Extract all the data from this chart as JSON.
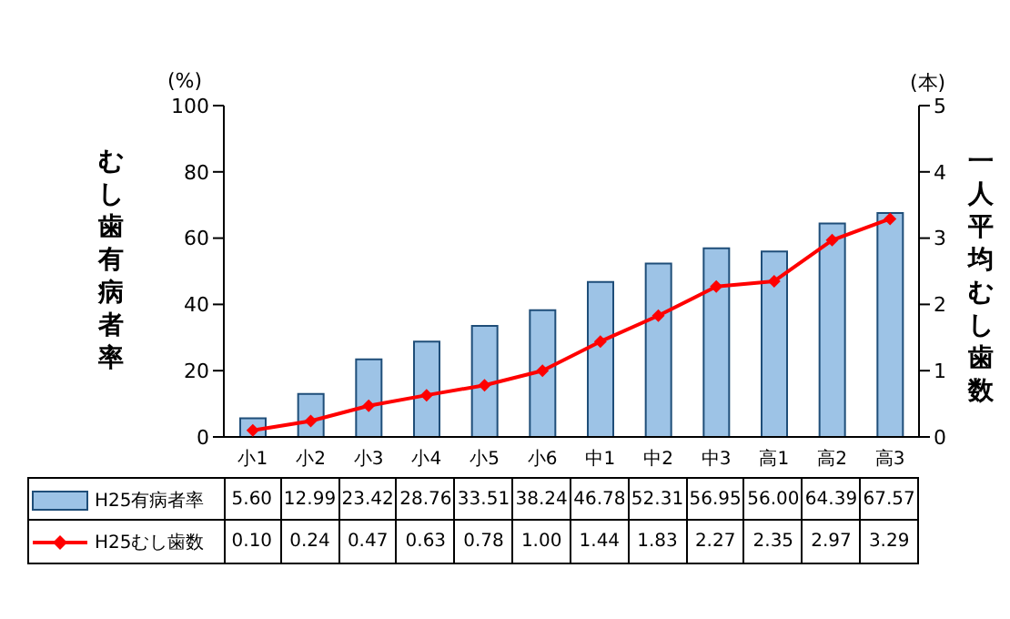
{
  "chart_data": {
    "type": "bar",
    "categories": [
      "小1",
      "小2",
      "小3",
      "小4",
      "小5",
      "小6",
      "中1",
      "中2",
      "中3",
      "高1",
      "高2",
      "高3"
    ],
    "series": [
      {
        "name": "H25有病者率",
        "color": "#9dc3e6",
        "values": [
          5.6,
          12.99,
          23.42,
          28.76,
          33.51,
          38.24,
          46.78,
          52.31,
          56.95,
          56.0,
          64.39,
          67.57
        ],
        "value_labels": [
          "5.60",
          "12.99",
          "23.42",
          "28.76",
          "33.51",
          "38.24",
          "46.78",
          "52.31",
          "56.95",
          "56.00",
          "64.39",
          "67.57"
        ]
      },
      {
        "name": "H25むし歯数",
        "type": "line",
        "axis": "y2",
        "color": "#ff0000",
        "marker": "diamond",
        "values": [
          0.1,
          0.24,
          0.47,
          0.63,
          0.78,
          1.0,
          1.44,
          1.83,
          2.27,
          2.35,
          2.97,
          3.29
        ],
        "value_labels": [
          "0.10",
          "0.24",
          "0.47",
          "0.63",
          "0.78",
          "1.00",
          "1.44",
          "1.83",
          "2.27",
          "2.35",
          "2.97",
          "3.29"
        ]
      }
    ],
    "ylabel": "むし歯有病者率",
    "y2label": "一人平均むし歯数",
    "ylim": [
      0,
      100
    ],
    "yticks": [
      0,
      20,
      40,
      60,
      80,
      100
    ],
    "y2lim": [
      0,
      5
    ],
    "y2ticks": [
      0,
      1,
      2,
      3,
      4,
      5
    ],
    "annotations": [
      "(%)",
      "(本)"
    ],
    "legend": "bottom",
    "grid": false
  }
}
